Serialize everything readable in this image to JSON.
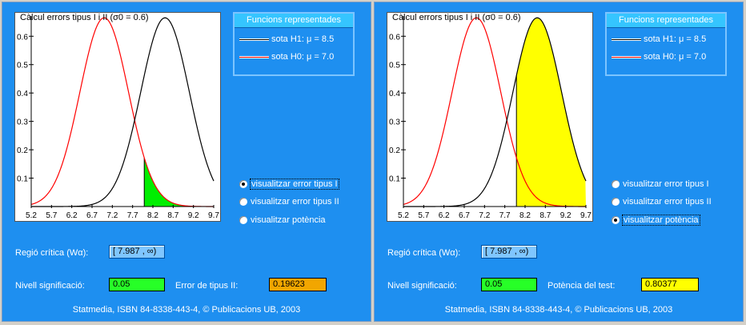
{
  "colors": {
    "panel_bg": "#1e8ff0",
    "curve_h1": "#000000",
    "curve_h0": "#ff0000",
    "green_fill": "#00ee00",
    "yellow_fill": "#ffff00"
  },
  "left": {
    "plot_title": "Càlcul errors tipus I i II (σ0 = 0.6)",
    "y_ticks": [
      "0.6",
      "0.5",
      "0.4",
      "0.3",
      "0.2",
      "0.1"
    ],
    "x_ticks": [
      "5.2",
      "5.7",
      "6.2",
      "6.7",
      "7.2",
      "7.7",
      "8.2",
      "8.7",
      "9.2",
      "9.7"
    ],
    "legend": {
      "title": "Funcions  representades",
      "h1": "sota H1: μ = 8.5",
      "h0": "sota H0: μ = 7.0"
    },
    "radios": [
      {
        "label": "visualitzar error tipus I",
        "selected": true
      },
      {
        "label": "visualitzar error tipus II",
        "selected": false
      },
      {
        "label": "visualitzar potència",
        "selected": false
      }
    ],
    "region_label": "Regió crítica (Wα):",
    "region_value": "[ 7.987 , ∞)",
    "nivell_label": "Nivell significació:",
    "nivell_value": "0.05",
    "result_label": "Error de tipus II:",
    "result_value": "0.19623",
    "footer": "Statmedia, ISBN 84-8338-443-4, © Publicacions UB, 2003"
  },
  "right": {
    "plot_title": "Càlcul errors tipus I i II (σ0 = 0.6)",
    "y_ticks": [
      "0.6",
      "0.5",
      "0.4",
      "0.3",
      "0.2",
      "0.1"
    ],
    "x_ticks": [
      "5.2",
      "5.7",
      "6.2",
      "6.7",
      "7.2",
      "7.7",
      "8.2",
      "8.7",
      "9.2",
      "9.7"
    ],
    "legend": {
      "title": "Funcions  representades",
      "h1": "sota H1: μ = 8.5",
      "h0": "sota H0: μ = 7.0"
    },
    "radios": [
      {
        "label": "visualitzar error tipus I",
        "selected": false
      },
      {
        "label": "visualitzar error tipus II",
        "selected": false
      },
      {
        "label": "visualitzar potència",
        "selected": true
      }
    ],
    "region_label": "Regió crítica (Wα):",
    "region_value": "[ 7.987 , ∞)",
    "nivell_label": "Nivell significació:",
    "nivell_value": "0.05",
    "result_label": "Potència del test:",
    "result_value": "0.80377",
    "footer": "Statmedia, ISBN 84-8338-443-4, © Publicacions UB, 2003"
  },
  "chart_data": [
    {
      "type": "line",
      "x_range": [
        5.2,
        9.7
      ],
      "y_range": [
        0,
        0.66
      ],
      "critical_value": 7.987,
      "shaded": "type-I-error (H0 tail right of critical value)",
      "series": [
        {
          "name": "sota H1: μ = 8.5",
          "mean": 8.5,
          "sd": 0.6
        },
        {
          "name": "sota H0: μ = 7.0",
          "mean": 7.0,
          "sd": 0.6
        }
      ]
    },
    {
      "type": "line",
      "x_range": [
        5.2,
        9.7
      ],
      "y_range": [
        0,
        0.66
      ],
      "critical_value": 7.987,
      "shaded": "power (H1 area right of critical value)",
      "series": [
        {
          "name": "sota H1: μ = 8.5",
          "mean": 8.5,
          "sd": 0.6
        },
        {
          "name": "sota H0: μ = 7.0",
          "mean": 7.0,
          "sd": 0.6
        }
      ]
    }
  ]
}
